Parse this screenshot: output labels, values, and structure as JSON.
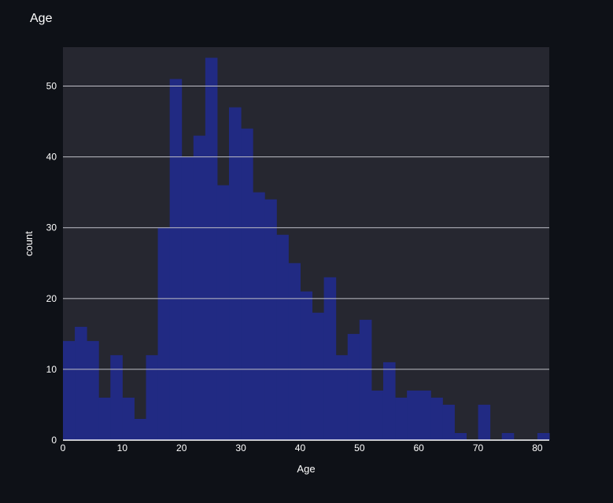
{
  "colors": {
    "background": "#0e1117",
    "plot_background": "#262730",
    "bar": "#212a83",
    "grid": "#bfbfc7"
  },
  "chart_data": {
    "type": "bar",
    "title": "Age",
    "xlabel": "Age",
    "ylabel": "count",
    "bin_width": 2,
    "x_start": 0,
    "xlim": [
      0,
      82
    ],
    "ylim": [
      0,
      55.5
    ],
    "x_ticks": [
      0,
      10,
      20,
      30,
      40,
      50,
      60,
      70,
      80
    ],
    "y_ticks": [
      0,
      10,
      20,
      30,
      40,
      50
    ],
    "grid": true,
    "values": [
      14,
      16,
      14,
      6,
      12,
      6,
      3,
      12,
      30,
      51,
      40,
      43,
      54,
      36,
      47,
      44,
      35,
      34,
      29,
      25,
      21,
      18,
      23,
      12,
      15,
      17,
      7,
      11,
      6,
      7,
      7,
      6,
      5,
      1,
      0,
      5,
      0,
      1,
      0,
      0,
      1
    ]
  }
}
